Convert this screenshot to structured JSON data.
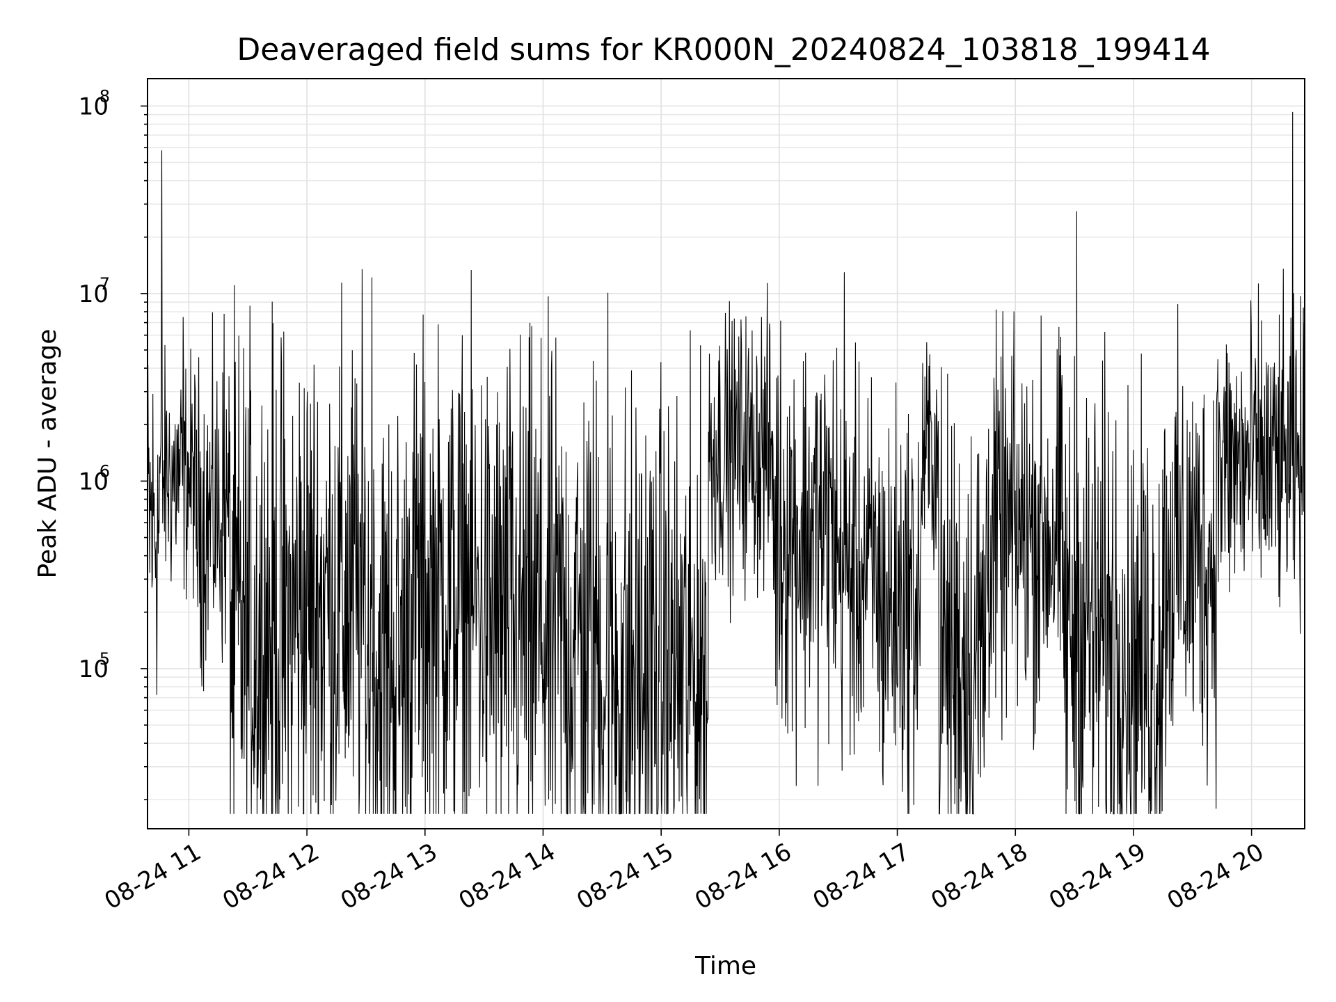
{
  "chart_data": {
    "type": "line",
    "title": "Deaveraged field sums for KR000N_20240824_103818_199414",
    "xlabel": "Time",
    "ylabel": "Peak ADU - average",
    "yscale": "log",
    "ylim": [
      14000,
      140000000
    ],
    "xlim_hours": [
      10.65,
      20.45
    ],
    "x_tick_labels": [
      "08-24 11",
      "08-24 12",
      "08-24 13",
      "08-24 14",
      "08-24 15",
      "08-24 16",
      "08-24 17",
      "08-24 18",
      "08-24 19",
      "08-24 20"
    ],
    "y_tick_labels": [
      {
        "base": "10",
        "exp": "5",
        "value": 100000
      },
      {
        "base": "10",
        "exp": "6",
        "value": 1000000
      },
      {
        "base": "10",
        "exp": "7",
        "value": 10000000
      },
      {
        "base": "10",
        "exp": "8",
        "value": 100000000
      }
    ],
    "grid": true,
    "series": [
      {
        "color": "#000000",
        "segments": [
          {
            "start": 10.65,
            "end": 10.75,
            "level": 600000,
            "spread": 0.55
          },
          {
            "start": 10.75,
            "end": 11.05,
            "level": 1050000,
            "spread": 0.35
          },
          {
            "start": 11.05,
            "end": 11.35,
            "level": 650000,
            "spread": 0.45
          },
          {
            "start": 11.35,
            "end": 11.9,
            "level": 160000,
            "spread": 0.85
          },
          {
            "start": 11.9,
            "end": 12.5,
            "level": 230000,
            "spread": 0.8
          },
          {
            "start": 12.5,
            "end": 12.85,
            "level": 110000,
            "spread": 0.8
          },
          {
            "start": 12.85,
            "end": 13.5,
            "level": 240000,
            "spread": 0.75
          },
          {
            "start": 13.5,
            "end": 14.0,
            "level": 170000,
            "spread": 0.8
          },
          {
            "start": 14.0,
            "end": 14.5,
            "level": 150000,
            "spread": 0.8
          },
          {
            "start": 14.5,
            "end": 15.0,
            "level": 90000,
            "spread": 0.85
          },
          {
            "start": 15.0,
            "end": 15.4,
            "level": 95000,
            "spread": 0.8
          },
          {
            "start": 15.4,
            "end": 15.95,
            "level": 1450000,
            "spread": 0.4
          },
          {
            "start": 15.95,
            "end": 16.5,
            "level": 550000,
            "spread": 0.6
          },
          {
            "start": 16.5,
            "end": 16.85,
            "level": 320000,
            "spread": 0.55
          },
          {
            "start": 16.85,
            "end": 17.2,
            "level": 220000,
            "spread": 0.6
          },
          {
            "start": 17.2,
            "end": 17.35,
            "level": 1400000,
            "spread": 0.35
          },
          {
            "start": 17.35,
            "end": 17.75,
            "level": 120000,
            "spread": 0.75
          },
          {
            "start": 17.75,
            "end": 18.4,
            "level": 520000,
            "spread": 0.55
          },
          {
            "start": 18.4,
            "end": 18.95,
            "level": 160000,
            "spread": 0.75
          },
          {
            "start": 18.95,
            "end": 19.25,
            "level": 120000,
            "spread": 0.7
          },
          {
            "start": 19.25,
            "end": 19.7,
            "level": 380000,
            "spread": 0.6
          },
          {
            "start": 19.7,
            "end": 20.45,
            "level": 1200000,
            "spread": 0.45
          }
        ],
        "spikes": [
          {
            "x": 10.77,
            "y": 58000000
          },
          {
            "x": 10.95,
            "y": 7500000
          },
          {
            "x": 11.3,
            "y": 7800000
          },
          {
            "x": 12.55,
            "y": 12200000
          },
          {
            "x": 14.55,
            "y": 10100000
          },
          {
            "x": 15.85,
            "y": 7500000
          },
          {
            "x": 16.55,
            "y": 13000000
          },
          {
            "x": 18.52,
            "y": 27500000
          },
          {
            "x": 20.35,
            "y": 93000000
          }
        ],
        "dips": [
          {
            "x": 11.75,
            "y": 27000
          },
          {
            "x": 12.7,
            "y": 28000
          },
          {
            "x": 14.7,
            "y": 22000
          },
          {
            "x": 15.0,
            "y": 20000
          },
          {
            "x": 16.85,
            "y": 36000
          },
          {
            "x": 18.95,
            "y": 34000
          }
        ]
      }
    ]
  }
}
